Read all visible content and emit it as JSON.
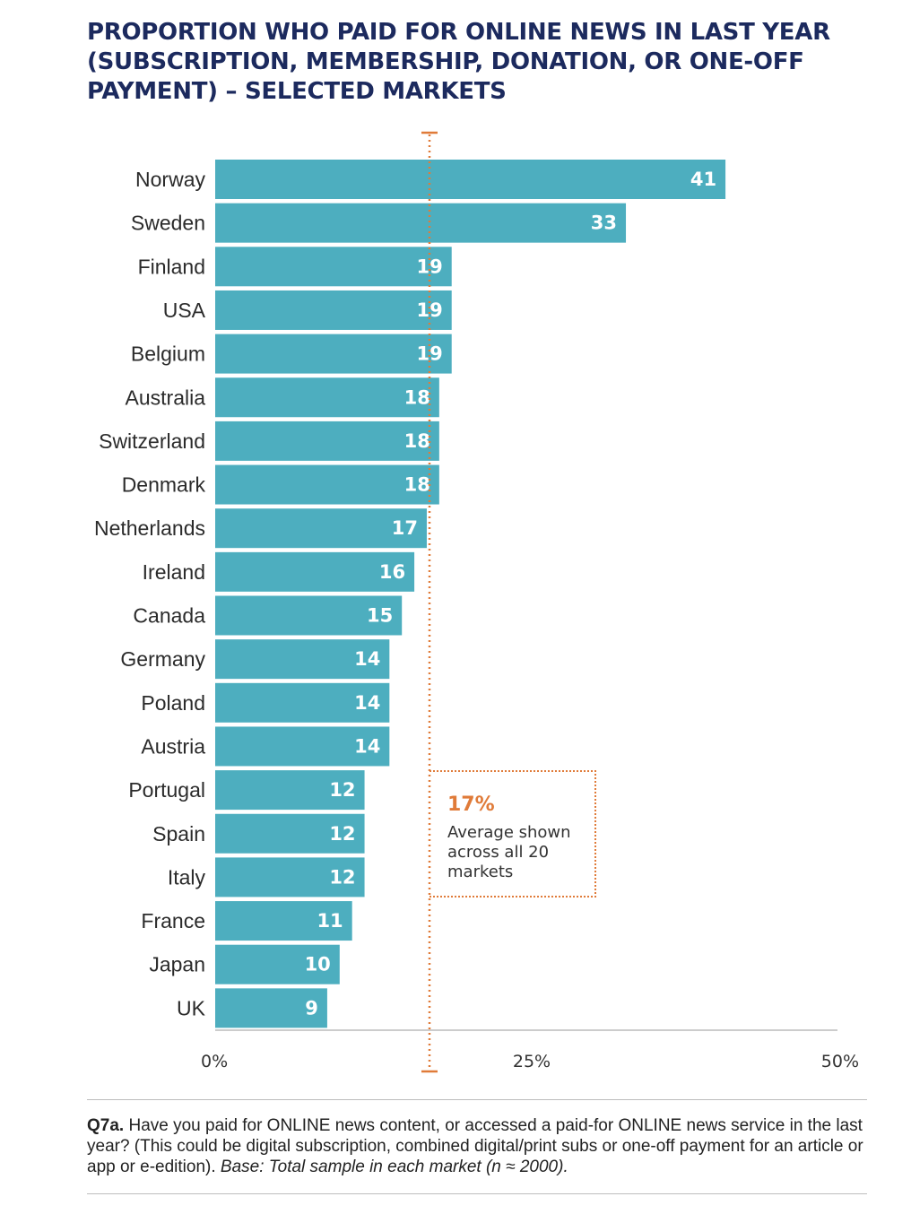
{
  "title": "PROPORTION WHO PAID FOR ONLINE NEWS IN LAST YEAR (SUBSCRIPTION, MEMBERSHIP, DONATION, OR ONE-OFF PAYMENT) – SELECTED MARKETS",
  "colors": {
    "bar": "#4daebf",
    "average": "#e07b39",
    "title": "#1c2a5e"
  },
  "average_box": {
    "value": "17%",
    "text": "Average shown across all 20 markets"
  },
  "chart_data": {
    "type": "bar",
    "orientation": "horizontal",
    "categories": [
      "Norway",
      "Sweden",
      "Finland",
      "USA",
      "Belgium",
      "Australia",
      "Switzerland",
      "Denmark",
      "Netherlands",
      "Ireland",
      "Canada",
      "Germany",
      "Poland",
      "Austria",
      "Portugal",
      "Spain",
      "Italy",
      "France",
      "Japan",
      "UK"
    ],
    "values": [
      41,
      33,
      19,
      19,
      19,
      18,
      18,
      18,
      17,
      16,
      15,
      14,
      14,
      14,
      12,
      12,
      12,
      11,
      10,
      9
    ],
    "xlim": [
      0,
      50
    ],
    "xticks": [
      0,
      25,
      50
    ],
    "xtick_labels": [
      "0%",
      "25%",
      "50%"
    ],
    "average_line": 17,
    "grid": false
  },
  "footnote": {
    "q_label": "Q7a.",
    "question": " Have you paid for ONLINE news content, or accessed a paid-for ONLINE news service in the last year? (This could be digital subscription, combined digital/print subs or one-off payment for an article or app or e-edition). ",
    "base": "Base: Total sample in each market (n ≈ 2000)."
  }
}
